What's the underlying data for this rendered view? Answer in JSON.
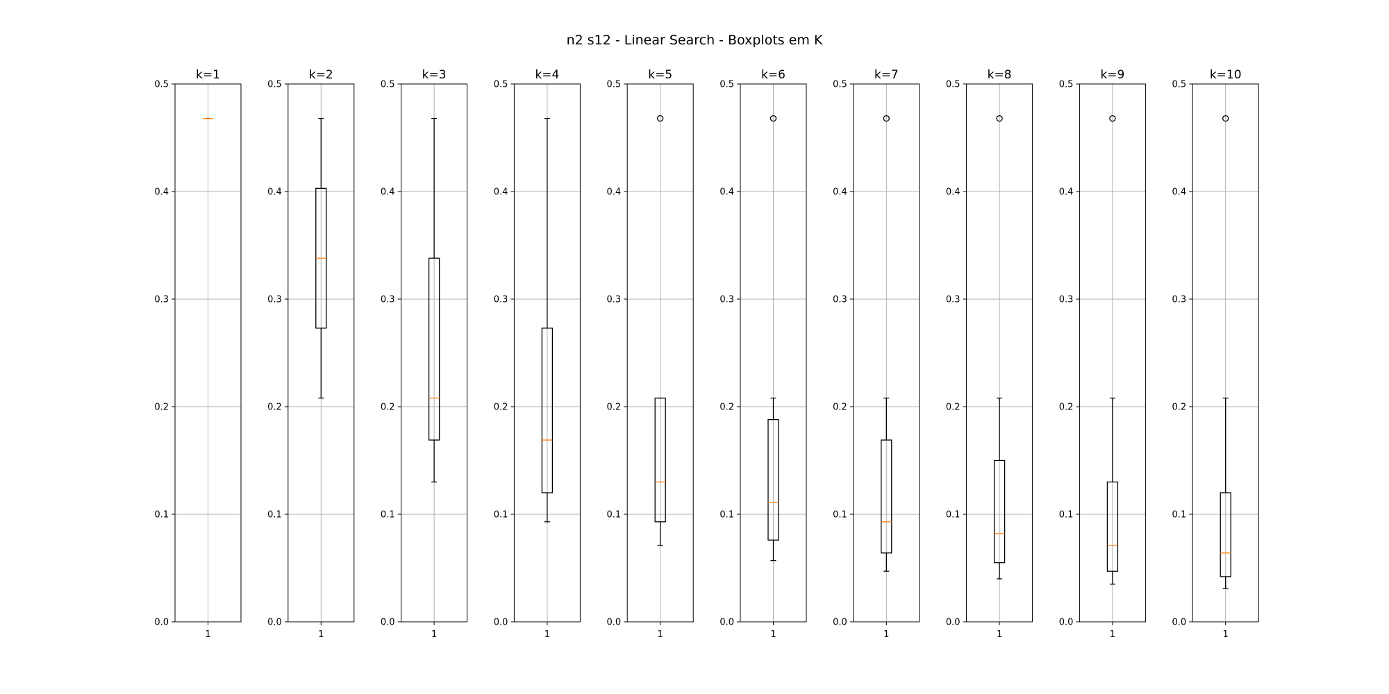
{
  "chart_data": {
    "type": "boxplot",
    "title": "n2 s12 - Linear Search - Boxplots em K",
    "ylim": [
      0,
      0.5
    ],
    "yticks": [
      "0.0",
      "0.1",
      "0.2",
      "0.3",
      "0.4",
      "0.5"
    ],
    "xtick": "1",
    "grid": true,
    "colors": {
      "box": "#000000",
      "median": "#ff7f0e",
      "grid": "#b0b0b0"
    },
    "panels": [
      {
        "title": "k=1",
        "whisker_low": 0.468,
        "q1": 0.468,
        "median": 0.468,
        "q3": 0.468,
        "whisker_high": 0.468,
        "outliers": []
      },
      {
        "title": "k=2",
        "whisker_low": 0.208,
        "q1": 0.273,
        "median": 0.338,
        "q3": 0.403,
        "whisker_high": 0.468,
        "outliers": []
      },
      {
        "title": "k=3",
        "whisker_low": 0.13,
        "q1": 0.169,
        "median": 0.208,
        "q3": 0.338,
        "whisker_high": 0.468,
        "outliers": []
      },
      {
        "title": "k=4",
        "whisker_low": 0.093,
        "q1": 0.12,
        "median": 0.169,
        "q3": 0.273,
        "whisker_high": 0.468,
        "outliers": []
      },
      {
        "title": "k=5",
        "whisker_low": 0.071,
        "q1": 0.093,
        "median": 0.13,
        "q3": 0.208,
        "whisker_high": 0.208,
        "outliers": [
          0.468
        ]
      },
      {
        "title": "k=6",
        "whisker_low": 0.057,
        "q1": 0.076,
        "median": 0.111,
        "q3": 0.188,
        "whisker_high": 0.208,
        "outliers": [
          0.468
        ]
      },
      {
        "title": "k=7",
        "whisker_low": 0.047,
        "q1": 0.064,
        "median": 0.093,
        "q3": 0.169,
        "whisker_high": 0.208,
        "outliers": [
          0.468
        ]
      },
      {
        "title": "k=8",
        "whisker_low": 0.04,
        "q1": 0.055,
        "median": 0.082,
        "q3": 0.15,
        "whisker_high": 0.208,
        "outliers": [
          0.468
        ]
      },
      {
        "title": "k=9",
        "whisker_low": 0.035,
        "q1": 0.047,
        "median": 0.071,
        "q3": 0.13,
        "whisker_high": 0.208,
        "outliers": [
          0.468
        ]
      },
      {
        "title": "k=10",
        "whisker_low": 0.031,
        "q1": 0.042,
        "median": 0.064,
        "q3": 0.12,
        "whisker_high": 0.208,
        "outliers": [
          0.468
        ]
      }
    ]
  }
}
